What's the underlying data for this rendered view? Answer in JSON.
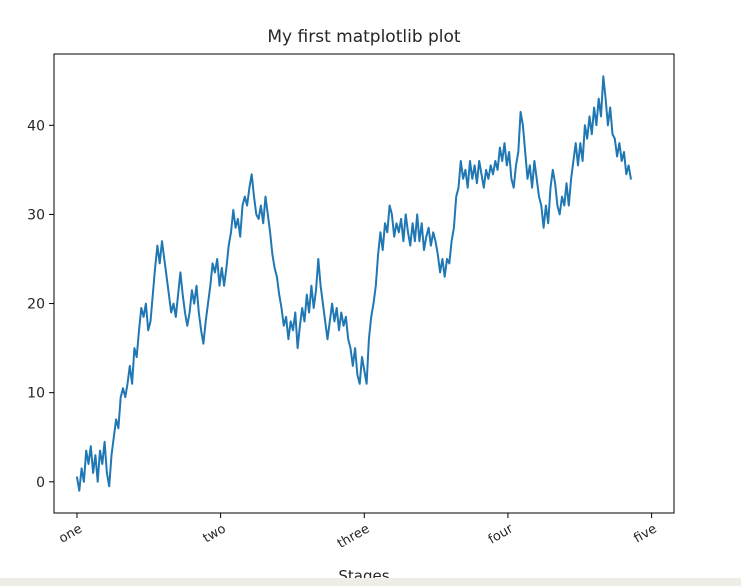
{
  "chart_data": {
    "type": "line",
    "title": "My first matplotlib plot",
    "xlabel": "Stages",
    "ylabel": "",
    "xlim": [
      -40,
      1039
    ],
    "ylim": [
      -3.5,
      48
    ],
    "x_ticks": [
      {
        "value": 0,
        "label": "one"
      },
      {
        "value": 250,
        "label": "two"
      },
      {
        "value": 500,
        "label": "three"
      },
      {
        "value": 750,
        "label": "four"
      },
      {
        "value": 1000,
        "label": "five"
      }
    ],
    "y_ticks": [
      0,
      10,
      20,
      30,
      40
    ],
    "grid": false,
    "legend": "none",
    "series": [
      {
        "color": "#1f77b4",
        "points": [
          [
            0,
            0.5
          ],
          [
            4,
            -1
          ],
          [
            8,
            1.5
          ],
          [
            12,
            0
          ],
          [
            16,
            3.5
          ],
          [
            20,
            2
          ],
          [
            24,
            4
          ],
          [
            28,
            1
          ],
          [
            32,
            3
          ],
          [
            36,
            0
          ],
          [
            40,
            3.5
          ],
          [
            44,
            2
          ],
          [
            48,
            4.5
          ],
          [
            52,
            1
          ],
          [
            56,
            -0.5
          ],
          [
            60,
            3
          ],
          [
            64,
            5
          ],
          [
            68,
            7
          ],
          [
            72,
            6
          ],
          [
            76,
            9.5
          ],
          [
            80,
            10.5
          ],
          [
            84,
            9.5
          ],
          [
            88,
            11
          ],
          [
            92,
            13
          ],
          [
            96,
            11
          ],
          [
            100,
            15
          ],
          [
            104,
            14
          ],
          [
            108,
            17
          ],
          [
            112,
            19.5
          ],
          [
            116,
            18.5
          ],
          [
            120,
            20
          ],
          [
            124,
            17
          ],
          [
            128,
            18
          ],
          [
            132,
            21
          ],
          [
            136,
            24
          ],
          [
            140,
            26.5
          ],
          [
            144,
            24.5
          ],
          [
            148,
            27
          ],
          [
            152,
            25
          ],
          [
            156,
            23
          ],
          [
            160,
            21
          ],
          [
            164,
            19
          ],
          [
            168,
            20
          ],
          [
            172,
            18.5
          ],
          [
            176,
            21
          ],
          [
            180,
            23.5
          ],
          [
            184,
            21
          ],
          [
            188,
            19
          ],
          [
            192,
            17.5
          ],
          [
            196,
            19
          ],
          [
            200,
            21.5
          ],
          [
            204,
            20
          ],
          [
            208,
            22
          ],
          [
            212,
            19
          ],
          [
            216,
            17
          ],
          [
            220,
            15.5
          ],
          [
            224,
            18
          ],
          [
            228,
            20
          ],
          [
            232,
            22
          ],
          [
            236,
            24.5
          ],
          [
            240,
            23.5
          ],
          [
            244,
            25
          ],
          [
            248,
            22
          ],
          [
            252,
            24
          ],
          [
            256,
            22
          ],
          [
            260,
            24
          ],
          [
            264,
            26.5
          ],
          [
            268,
            28
          ],
          [
            272,
            30.5
          ],
          [
            276,
            28.5
          ],
          [
            280,
            29.5
          ],
          [
            284,
            27.5
          ],
          [
            288,
            31
          ],
          [
            292,
            32
          ],
          [
            296,
            31
          ],
          [
            300,
            33
          ],
          [
            304,
            34.5
          ],
          [
            308,
            32
          ],
          [
            312,
            30
          ],
          [
            316,
            29.5
          ],
          [
            320,
            31
          ],
          [
            324,
            29
          ],
          [
            328,
            32
          ],
          [
            332,
            30
          ],
          [
            336,
            28
          ],
          [
            340,
            25.5
          ],
          [
            344,
            24
          ],
          [
            348,
            23
          ],
          [
            352,
            21
          ],
          [
            356,
            19.5
          ],
          [
            360,
            17.5
          ],
          [
            364,
            18.5
          ],
          [
            368,
            16
          ],
          [
            372,
            18
          ],
          [
            376,
            17
          ],
          [
            380,
            19
          ],
          [
            384,
            15
          ],
          [
            388,
            17.5
          ],
          [
            392,
            19.5
          ],
          [
            396,
            18
          ],
          [
            400,
            21
          ],
          [
            404,
            19
          ],
          [
            408,
            22
          ],
          [
            412,
            19.5
          ],
          [
            416,
            21.5
          ],
          [
            420,
            25
          ],
          [
            424,
            22
          ],
          [
            428,
            20
          ],
          [
            432,
            18
          ],
          [
            436,
            16
          ],
          [
            440,
            18
          ],
          [
            444,
            20
          ],
          [
            448,
            18
          ],
          [
            452,
            19.5
          ],
          [
            456,
            17
          ],
          [
            460,
            19
          ],
          [
            464,
            17.5
          ],
          [
            468,
            18.5
          ],
          [
            472,
            16
          ],
          [
            476,
            15
          ],
          [
            480,
            13
          ],
          [
            484,
            15
          ],
          [
            488,
            12
          ],
          [
            492,
            11
          ],
          [
            496,
            14
          ],
          [
            500,
            12.5
          ],
          [
            504,
            11
          ],
          [
            508,
            16
          ],
          [
            512,
            18.5
          ],
          [
            516,
            20
          ],
          [
            520,
            22
          ],
          [
            524,
            25.5
          ],
          [
            528,
            28
          ],
          [
            532,
            26
          ],
          [
            536,
            29
          ],
          [
            540,
            28
          ],
          [
            544,
            31
          ],
          [
            548,
            30
          ],
          [
            552,
            27.5
          ],
          [
            556,
            29
          ],
          [
            560,
            28
          ],
          [
            564,
            29.5
          ],
          [
            568,
            27
          ],
          [
            572,
            30
          ],
          [
            576,
            28
          ],
          [
            580,
            26.5
          ],
          [
            584,
            29
          ],
          [
            588,
            27
          ],
          [
            592,
            30
          ],
          [
            596,
            27
          ],
          [
            600,
            29
          ],
          [
            604,
            26
          ],
          [
            608,
            27.5
          ],
          [
            612,
            28.5
          ],
          [
            616,
            26.5
          ],
          [
            620,
            28
          ],
          [
            624,
            27
          ],
          [
            628,
            25.5
          ],
          [
            632,
            23.5
          ],
          [
            636,
            25
          ],
          [
            640,
            23
          ],
          [
            644,
            25
          ],
          [
            648,
            24.5
          ],
          [
            652,
            27
          ],
          [
            656,
            28.5
          ],
          [
            660,
            32
          ],
          [
            664,
            33
          ],
          [
            668,
            36
          ],
          [
            672,
            34
          ],
          [
            676,
            35
          ],
          [
            680,
            33
          ],
          [
            684,
            36
          ],
          [
            688,
            34
          ],
          [
            692,
            35.5
          ],
          [
            696,
            33.5
          ],
          [
            700,
            36
          ],
          [
            704,
            34.5
          ],
          [
            708,
            33
          ],
          [
            712,
            35
          ],
          [
            716,
            34
          ],
          [
            720,
            35.5
          ],
          [
            724,
            34.5
          ],
          [
            728,
            36
          ],
          [
            732,
            35
          ],
          [
            736,
            37.5
          ],
          [
            740,
            36
          ],
          [
            744,
            38
          ],
          [
            748,
            35.5
          ],
          [
            752,
            37
          ],
          [
            756,
            34
          ],
          [
            760,
            33
          ],
          [
            764,
            35.5
          ],
          [
            768,
            37
          ],
          [
            772,
            41.5
          ],
          [
            776,
            40
          ],
          [
            780,
            37
          ],
          [
            784,
            34
          ],
          [
            788,
            35.5
          ],
          [
            792,
            33
          ],
          [
            796,
            36
          ],
          [
            800,
            34
          ],
          [
            804,
            32
          ],
          [
            808,
            31
          ],
          [
            812,
            28.5
          ],
          [
            816,
            31
          ],
          [
            820,
            29
          ],
          [
            824,
            33
          ],
          [
            828,
            35
          ],
          [
            832,
            33.5
          ],
          [
            836,
            31
          ],
          [
            840,
            30
          ],
          [
            844,
            32
          ],
          [
            848,
            31
          ],
          [
            852,
            33.5
          ],
          [
            856,
            31
          ],
          [
            860,
            34
          ],
          [
            864,
            36
          ],
          [
            868,
            38
          ],
          [
            872,
            35.5
          ],
          [
            876,
            38
          ],
          [
            880,
            36
          ],
          [
            884,
            40
          ],
          [
            888,
            38.5
          ],
          [
            892,
            41
          ],
          [
            896,
            39
          ],
          [
            900,
            42
          ],
          [
            904,
            40
          ],
          [
            908,
            43
          ],
          [
            912,
            41
          ],
          [
            916,
            45.5
          ],
          [
            920,
            43
          ],
          [
            924,
            40
          ],
          [
            928,
            42
          ],
          [
            932,
            39
          ],
          [
            936,
            38.5
          ],
          [
            940,
            36.5
          ],
          [
            944,
            38
          ],
          [
            948,
            36
          ],
          [
            952,
            37
          ],
          [
            956,
            34.5
          ],
          [
            960,
            35.5
          ],
          [
            964,
            34
          ]
        ]
      }
    ]
  }
}
